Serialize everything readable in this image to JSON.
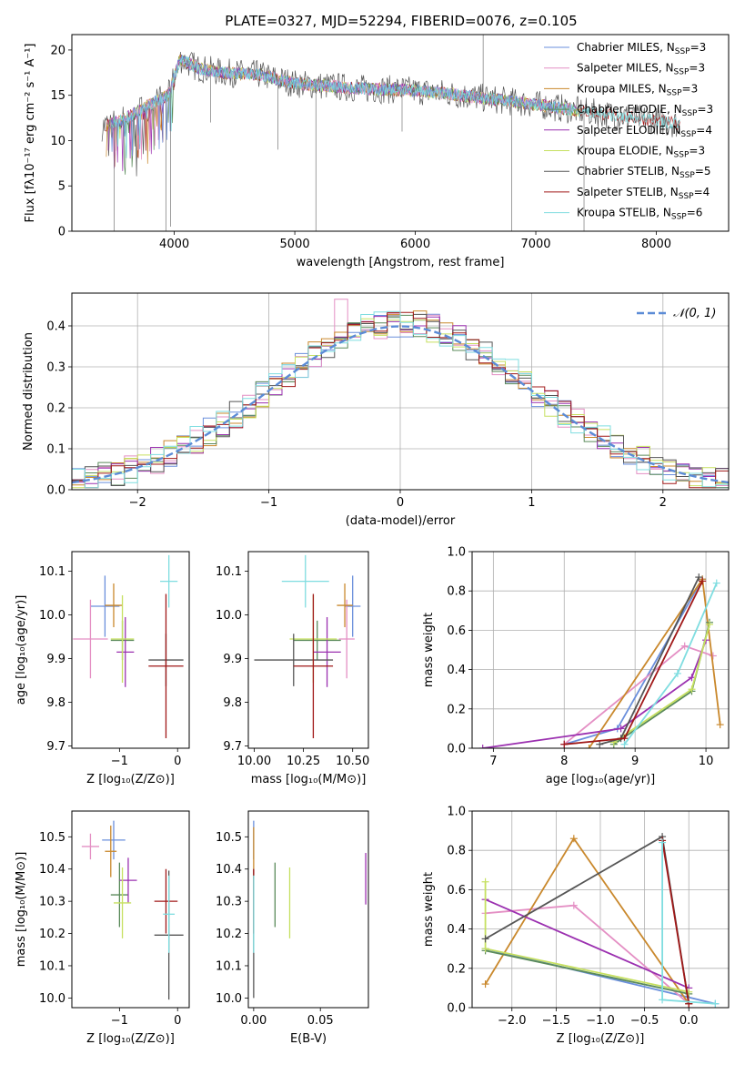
{
  "title": "PLATE=0327, MJD=52294, FIBERID=0076, z=0.105",
  "colors": {
    "Chabrier MILES": "#6a8fdc",
    "Salpeter MILES": "#e48fc4",
    "Kroupa MILES": "#c9882c",
    "Chabrier ELODIE": "#5a8a5a",
    "Salpeter ELODIE": "#9b30b0",
    "Kroupa ELODIE": "#c6e060",
    "Chabrier STELIB": "#555555",
    "Salpeter STELIB": "#a01818",
    "Kroupa STELIB": "#7fdde0"
  },
  "chart_data": [
    {
      "id": "spectrum",
      "type": "line",
      "xlabel": "wavelength [Angstrom, rest frame]",
      "ylabel": "Flux [fλ10⁻¹⁷ erg cm⁻² s⁻¹ A⁻¹]",
      "xlim": [
        3150,
        8600
      ],
      "ylim": [
        0,
        21.7
      ],
      "xticks": [
        "4000",
        "5000",
        "6000",
        "7000",
        "8000"
      ],
      "yticks": [
        "0",
        "5",
        "10",
        "15",
        "20"
      ],
      "legend_position": "top-right",
      "legend": [
        {
          "model": "Chabrier MILES",
          "n": "3"
        },
        {
          "model": "Salpeter MILES",
          "n": "3"
        },
        {
          "model": "Kroupa MILES",
          "n": "3"
        },
        {
          "model": "Chabrier ELODIE",
          "n": "3"
        },
        {
          "model": "Salpeter ELODIE",
          "n": "4"
        },
        {
          "model": "Kroupa ELODIE",
          "n": "3"
        },
        {
          "model": "Chabrier STELIB",
          "n": "5"
        },
        {
          "model": "Salpeter STELIB",
          "n": "4"
        },
        {
          "model": "Kroupa STELIB",
          "n": "6"
        }
      ],
      "continuum": [
        [
          3400,
          11.5
        ],
        [
          3600,
          12.5
        ],
        [
          3800,
          14
        ],
        [
          3950,
          15
        ],
        [
          4050,
          19
        ],
        [
          4200,
          18
        ],
        [
          4400,
          17.5
        ],
        [
          4700,
          17.3
        ],
        [
          5000,
          16.3
        ],
        [
          5300,
          16
        ],
        [
          5600,
          15.7
        ],
        [
          5900,
          15.6
        ],
        [
          6200,
          15.3
        ],
        [
          6500,
          14.8
        ],
        [
          6800,
          14.3
        ],
        [
          7100,
          13.8
        ],
        [
          7400,
          13.2
        ],
        [
          7700,
          12.7
        ],
        [
          8000,
          12.2
        ],
        [
          8200,
          11.8
        ]
      ],
      "spikes": [
        [
          3500,
          0
        ],
        [
          3930,
          0
        ],
        [
          3970,
          0.5
        ],
        [
          4300,
          12
        ],
        [
          4860,
          9
        ],
        [
          5175,
          0
        ],
        [
          5890,
          11
        ],
        [
          6563,
          21.7
        ],
        [
          6800,
          0
        ],
        [
          7400,
          0
        ]
      ]
    },
    {
      "id": "residuals",
      "type": "line",
      "xlabel": "(data-model)/error",
      "ylabel": "Normed distribution",
      "xlim": [
        -2.5,
        2.5
      ],
      "ylim": [
        0,
        0.48
      ],
      "xticks": [
        "−2",
        "−1",
        "0",
        "1",
        "2"
      ],
      "yticks": [
        "0.0",
        "0.1",
        "0.2",
        "0.3",
        "0.4"
      ],
      "legend_position": "top-right",
      "gauss_label": "𝒩(0, 1)",
      "gauss_color": "#5b8bd6"
    },
    {
      "id": "age_vs_Z",
      "type": "scatter",
      "xlabel": "Z [log₁₀(Z/Z⊙)]",
      "ylabel": "age  [log₁₀(age/yr)]",
      "xlim": [
        -1.82,
        0.2
      ],
      "ylim": [
        9.695,
        10.145
      ],
      "xticks": [
        "−1",
        "0"
      ],
      "yticks": [
        "9.7",
        "9.8",
        "9.9",
        "10.0",
        "10.1"
      ],
      "points": [
        {
          "series": "Chabrier MILES",
          "x": -1.25,
          "y": 10.02,
          "xerr": 0.25,
          "yerr": 0.07
        },
        {
          "series": "Salpeter MILES",
          "x": -1.5,
          "y": 9.945,
          "xerr": 0.3,
          "yerr": 0.09
        },
        {
          "series": "Kroupa MILES",
          "x": -1.1,
          "y": 10.022,
          "xerr": 0.15,
          "yerr": 0.05
        },
        {
          "series": "Chabrier ELODIE",
          "x": -0.95,
          "y": 9.942,
          "xerr": 0.2,
          "yerr": 0.045
        },
        {
          "series": "Salpeter ELODIE",
          "x": -0.9,
          "y": 9.915,
          "xerr": 0.15,
          "yerr": 0.08
        },
        {
          "series": "Kroupa ELODIE",
          "x": -0.95,
          "y": 9.945,
          "xerr": 0.2,
          "yerr": 0.1
        },
        {
          "series": "Chabrier STELIB",
          "x": -0.2,
          "y": 9.897,
          "xerr": 0.3,
          "yerr": 0.06
        },
        {
          "series": "Salpeter STELIB",
          "x": -0.2,
          "y": 9.883,
          "xerr": 0.3,
          "yerr": 0.165
        },
        {
          "series": "Kroupa STELIB",
          "x": -0.15,
          "y": 10.077,
          "xerr": 0.15,
          "yerr": 0.06
        }
      ]
    },
    {
      "id": "age_vs_mass",
      "type": "scatter",
      "xlabel": "mass [log₁₀(M/M⊙)]",
      "xlim": [
        9.97,
        10.58
      ],
      "ylim": [
        9.695,
        10.145
      ],
      "xticks": [
        "10.00",
        "10.25",
        "10.50"
      ],
      "yticks": [
        "9.7",
        "9.8",
        "9.9",
        "10.0",
        "10.1"
      ],
      "points": [
        {
          "series": "Chabrier MILES",
          "x": 10.5,
          "y": 10.02,
          "xerr": 0.04,
          "yerr": 0.07
        },
        {
          "series": "Salpeter MILES",
          "x": 10.47,
          "y": 9.945,
          "xerr": 0.04,
          "yerr": 0.09
        },
        {
          "series": "Kroupa MILES",
          "x": 10.46,
          "y": 10.022,
          "xerr": 0.04,
          "yerr": 0.05
        },
        {
          "series": "Chabrier ELODIE",
          "x": 10.32,
          "y": 9.942,
          "xerr": 0.12,
          "yerr": 0.045
        },
        {
          "series": "Salpeter ELODIE",
          "x": 10.37,
          "y": 9.915,
          "xerr": 0.07,
          "yerr": 0.08
        },
        {
          "series": "Kroupa ELODIE",
          "x": 10.3,
          "y": 9.945,
          "xerr": 0.12,
          "yerr": 0.1
        },
        {
          "series": "Chabrier STELIB",
          "x": 10.2,
          "y": 9.897,
          "xerr": 0.2,
          "yerr": 0.06
        },
        {
          "series": "Salpeter STELIB",
          "x": 10.3,
          "y": 9.883,
          "xerr": 0.1,
          "yerr": 0.165
        },
        {
          "series": "Kroupa STELIB",
          "x": 10.26,
          "y": 10.077,
          "xerr": 0.12,
          "yerr": 0.06
        }
      ]
    },
    {
      "id": "weight_vs_age",
      "type": "line",
      "xlabel": "age  [log₁₀(age/yr)]",
      "ylabel": "mass weight",
      "xlim": [
        6.7,
        10.32
      ],
      "ylim": [
        0,
        1.0
      ],
      "xticks": [
        "7",
        "8",
        "9",
        "10"
      ],
      "yticks": [
        "0.0",
        "0.2",
        "0.4",
        "0.6",
        "0.8",
        "1.0"
      ],
      "series": [
        {
          "name": "Chabrier MILES",
          "x": [
            8.0,
            8.75,
            9.95
          ],
          "y": [
            0.02,
            0.1,
            0.86
          ]
        },
        {
          "name": "Salpeter MILES",
          "x": [
            8.0,
            9.7,
            10.1
          ],
          "y": [
            0.02,
            0.52,
            0.47
          ]
        },
        {
          "name": "Kroupa MILES",
          "x": [
            8.35,
            9.95,
            10.2
          ],
          "y": [
            0.0,
            0.86,
            0.12
          ]
        },
        {
          "name": "Chabrier ELODIE",
          "x": [
            8.7,
            9.8,
            10.05
          ],
          "y": [
            0.02,
            0.29,
            0.64
          ]
        },
        {
          "name": "Salpeter ELODIE",
          "x": [
            6.85,
            8.8,
            9.8,
            10.0
          ],
          "y": [
            0.0,
            0.1,
            0.36,
            0.55
          ]
        },
        {
          "name": "Kroupa ELODIE",
          "x": [
            8.7,
            9.8,
            10.05
          ],
          "y": [
            0.03,
            0.3,
            0.63
          ]
        },
        {
          "name": "Chabrier STELIB",
          "x": [
            8.5,
            8.8,
            9.9
          ],
          "y": [
            0.02,
            0.05,
            0.87
          ]
        },
        {
          "name": "Salpeter STELIB",
          "x": [
            8.0,
            8.85,
            9.95
          ],
          "y": [
            0.02,
            0.05,
            0.85
          ]
        },
        {
          "name": "Kroupa STELIB",
          "x": [
            8.85,
            9.6,
            10.15
          ],
          "y": [
            0.02,
            0.38,
            0.84
          ]
        }
      ]
    },
    {
      "id": "mass_vs_Z",
      "type": "scatter",
      "xlabel": "Z [log₁₀(Z/Z⊙)]",
      "ylabel": "mass [log₁₀(M/M⊙)]",
      "xlim": [
        -1.82,
        0.2
      ],
      "ylim": [
        9.97,
        10.58
      ],
      "xticks": [
        "−1",
        "0"
      ],
      "yticks": [
        "10.0",
        "10.1",
        "10.2",
        "10.3",
        "10.4",
        "10.5"
      ],
      "points": [
        {
          "series": "Chabrier MILES",
          "x": -1.1,
          "y": 10.49,
          "xerr": 0.2,
          "yerr": 0.06
        },
        {
          "series": "Salpeter MILES",
          "x": -1.5,
          "y": 10.47,
          "xerr": 0.15,
          "yerr": 0.04
        },
        {
          "series": "Kroupa MILES",
          "x": -1.15,
          "y": 10.455,
          "xerr": 0.1,
          "yerr": 0.08
        },
        {
          "series": "Chabrier ELODIE",
          "x": -1.0,
          "y": 10.32,
          "xerr": 0.15,
          "yerr": 0.1
        },
        {
          "series": "Salpeter ELODIE",
          "x": -0.85,
          "y": 10.365,
          "xerr": 0.15,
          "yerr": 0.07
        },
        {
          "series": "Kroupa ELODIE",
          "x": -0.95,
          "y": 10.295,
          "xerr": 0.15,
          "yerr": 0.11
        },
        {
          "series": "Chabrier STELIB",
          "x": -0.15,
          "y": 10.195,
          "xerr": 0.25,
          "yerr": 0.2
        },
        {
          "series": "Salpeter STELIB",
          "x": -0.2,
          "y": 10.3,
          "xerr": 0.2,
          "yerr": 0.1
        },
        {
          "series": "Kroupa STELIB",
          "x": -0.15,
          "y": 10.26,
          "xerr": 0.1,
          "yerr": 0.12
        }
      ]
    },
    {
      "id": "mass_vs_EBV",
      "type": "scatter",
      "xlabel": "E(B-V)",
      "xlim": [
        -0.004,
        0.086
      ],
      "ylim": [
        9.97,
        10.58
      ],
      "xticks": [
        "0.00",
        "0.05"
      ],
      "yticks": [
        "10.0",
        "10.1",
        "10.2",
        "10.3",
        "10.4",
        "10.5"
      ],
      "points": [
        {
          "series": "Chabrier MILES",
          "x": 0.0,
          "y": 10.49,
          "yerr": 0.06
        },
        {
          "series": "Kroupa MILES",
          "x": 0.0,
          "y": 10.45,
          "yerr": 0.08
        },
        {
          "series": "Chabrier ELODIE",
          "x": 0.016,
          "y": 10.32,
          "yerr": 0.1
        },
        {
          "series": "Kroupa ELODIE",
          "x": 0.027,
          "y": 10.295,
          "yerr": 0.11
        },
        {
          "series": "Salpeter ELODIE",
          "x": 0.084,
          "y": 10.37,
          "yerr": 0.08
        },
        {
          "series": "Chabrier STELIB",
          "x": 0.0,
          "y": 10.2,
          "yerr": 0.2
        },
        {
          "series": "Salpeter STELIB",
          "x": 0.0,
          "y": 10.3,
          "yerr": 0.1
        },
        {
          "series": "Kroupa STELIB",
          "x": 0.0,
          "y": 10.26,
          "yerr": 0.12
        }
      ]
    },
    {
      "id": "weight_vs_Z",
      "type": "line",
      "xlabel": "Z [log₁₀(Z/Z⊙)]",
      "ylabel": "mass weight",
      "xlim": [
        -2.45,
        0.45
      ],
      "ylim": [
        0,
        1.0
      ],
      "xticks": [
        "−2.0",
        "−1.5",
        "−1.0",
        "−0.5",
        "0.0"
      ],
      "yticks": [
        "0.0",
        "0.2",
        "0.4",
        "0.6",
        "0.8",
        "1.0"
      ],
      "series": [
        {
          "name": "Chabrier MILES",
          "x": [
            -2.3,
            0.3
          ],
          "y": [
            0.3,
            0.02
          ]
        },
        {
          "name": "Salpeter MILES",
          "x": [
            -2.3,
            -1.3,
            0.0
          ],
          "y": [
            0.48,
            0.52,
            0.02
          ]
        },
        {
          "name": "Kroupa MILES",
          "x": [
            -2.3,
            -1.3,
            0.0
          ],
          "y": [
            0.12,
            0.86,
            0.02
          ]
        },
        {
          "name": "Chabrier ELODIE",
          "x": [
            -2.3,
            0.0
          ],
          "y": [
            0.29,
            0.07
          ]
        },
        {
          "name": "Salpeter ELODIE",
          "x": [
            -2.3,
            0.0
          ],
          "y": [
            0.55,
            0.1
          ]
        },
        {
          "name": "Kroupa ELODIE",
          "x": [
            -2.3,
            -2.3,
            0.0
          ],
          "y": [
            0.64,
            0.3,
            0.08
          ]
        },
        {
          "name": "Chabrier STELIB",
          "x": [
            -2.3,
            -0.3,
            0.0
          ],
          "y": [
            0.35,
            0.87,
            0.02
          ]
        },
        {
          "name": "Salpeter STELIB",
          "x": [
            -0.3,
            0.0
          ],
          "y": [
            0.85,
            0.02
          ]
        },
        {
          "name": "Kroupa STELIB",
          "x": [
            -0.3,
            -0.3,
            0.3
          ],
          "y": [
            0.84,
            0.04,
            0.02
          ]
        }
      ]
    }
  ]
}
